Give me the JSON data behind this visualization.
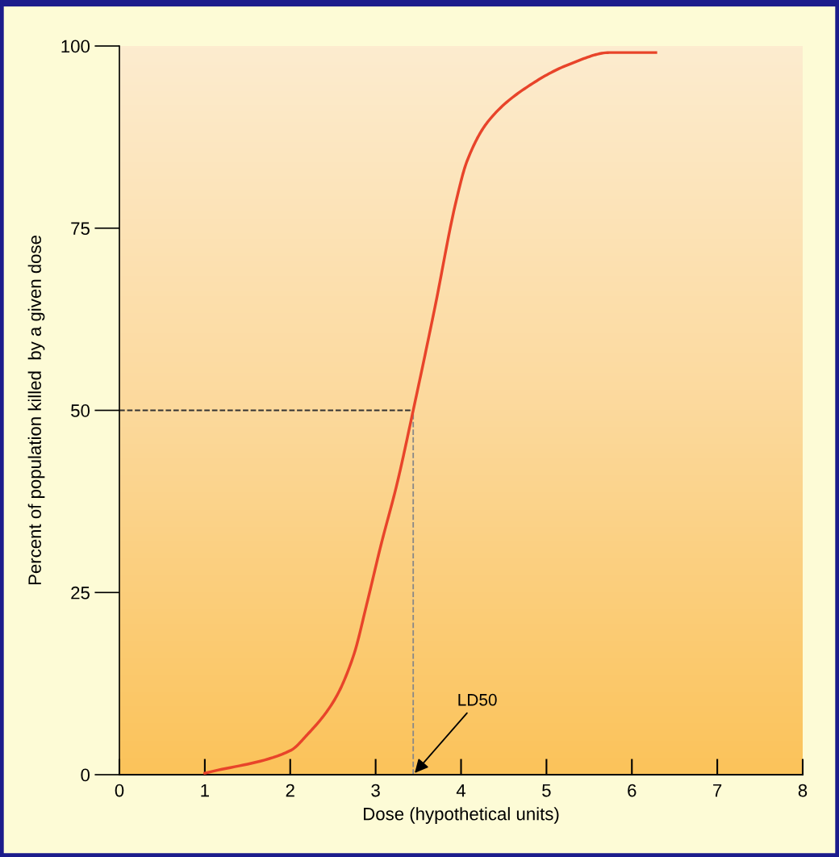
{
  "chart_data": {
    "type": "line",
    "xlabel": "Dose (hypothetical units)",
    "ylabel": "Percent of population killed  by a given dose",
    "series": [
      {
        "color": "#e8442a",
        "x": [
          1.0,
          2.0,
          2.2,
          2.52,
          2.74,
          2.9,
          3.06,
          3.25,
          3.44,
          3.69,
          3.94,
          4.07,
          4.32,
          4.79,
          5.27,
          5.74,
          6.28
        ],
        "values": [
          0.2,
          3.3,
          5.5,
          10.3,
          16.3,
          23.6,
          31.4,
          39.9,
          50,
          63.9,
          78.6,
          84.2,
          89.7,
          94.5,
          97.5,
          99.1,
          99.1
        ]
      }
    ],
    "xlim": [
      0,
      8
    ],
    "xticks": [
      0,
      1,
      2,
      3,
      4,
      5,
      6,
      7,
      8
    ],
    "ylim": [
      0,
      100
    ],
    "yticks": [
      0,
      25,
      50,
      75,
      100
    ],
    "ref_lines": [
      {
        "axis": "x",
        "value": 3.44,
        "color": "#888888",
        "line_style": "dashed"
      },
      {
        "axis": "y",
        "value": 50,
        "color": "#333333",
        "line_style": "dashed"
      }
    ],
    "annotations": [
      {
        "text": "LD50",
        "x": 3.44,
        "y": 0
      }
    ],
    "grid": false,
    "marker": "none",
    "line_style": "solid"
  }
}
